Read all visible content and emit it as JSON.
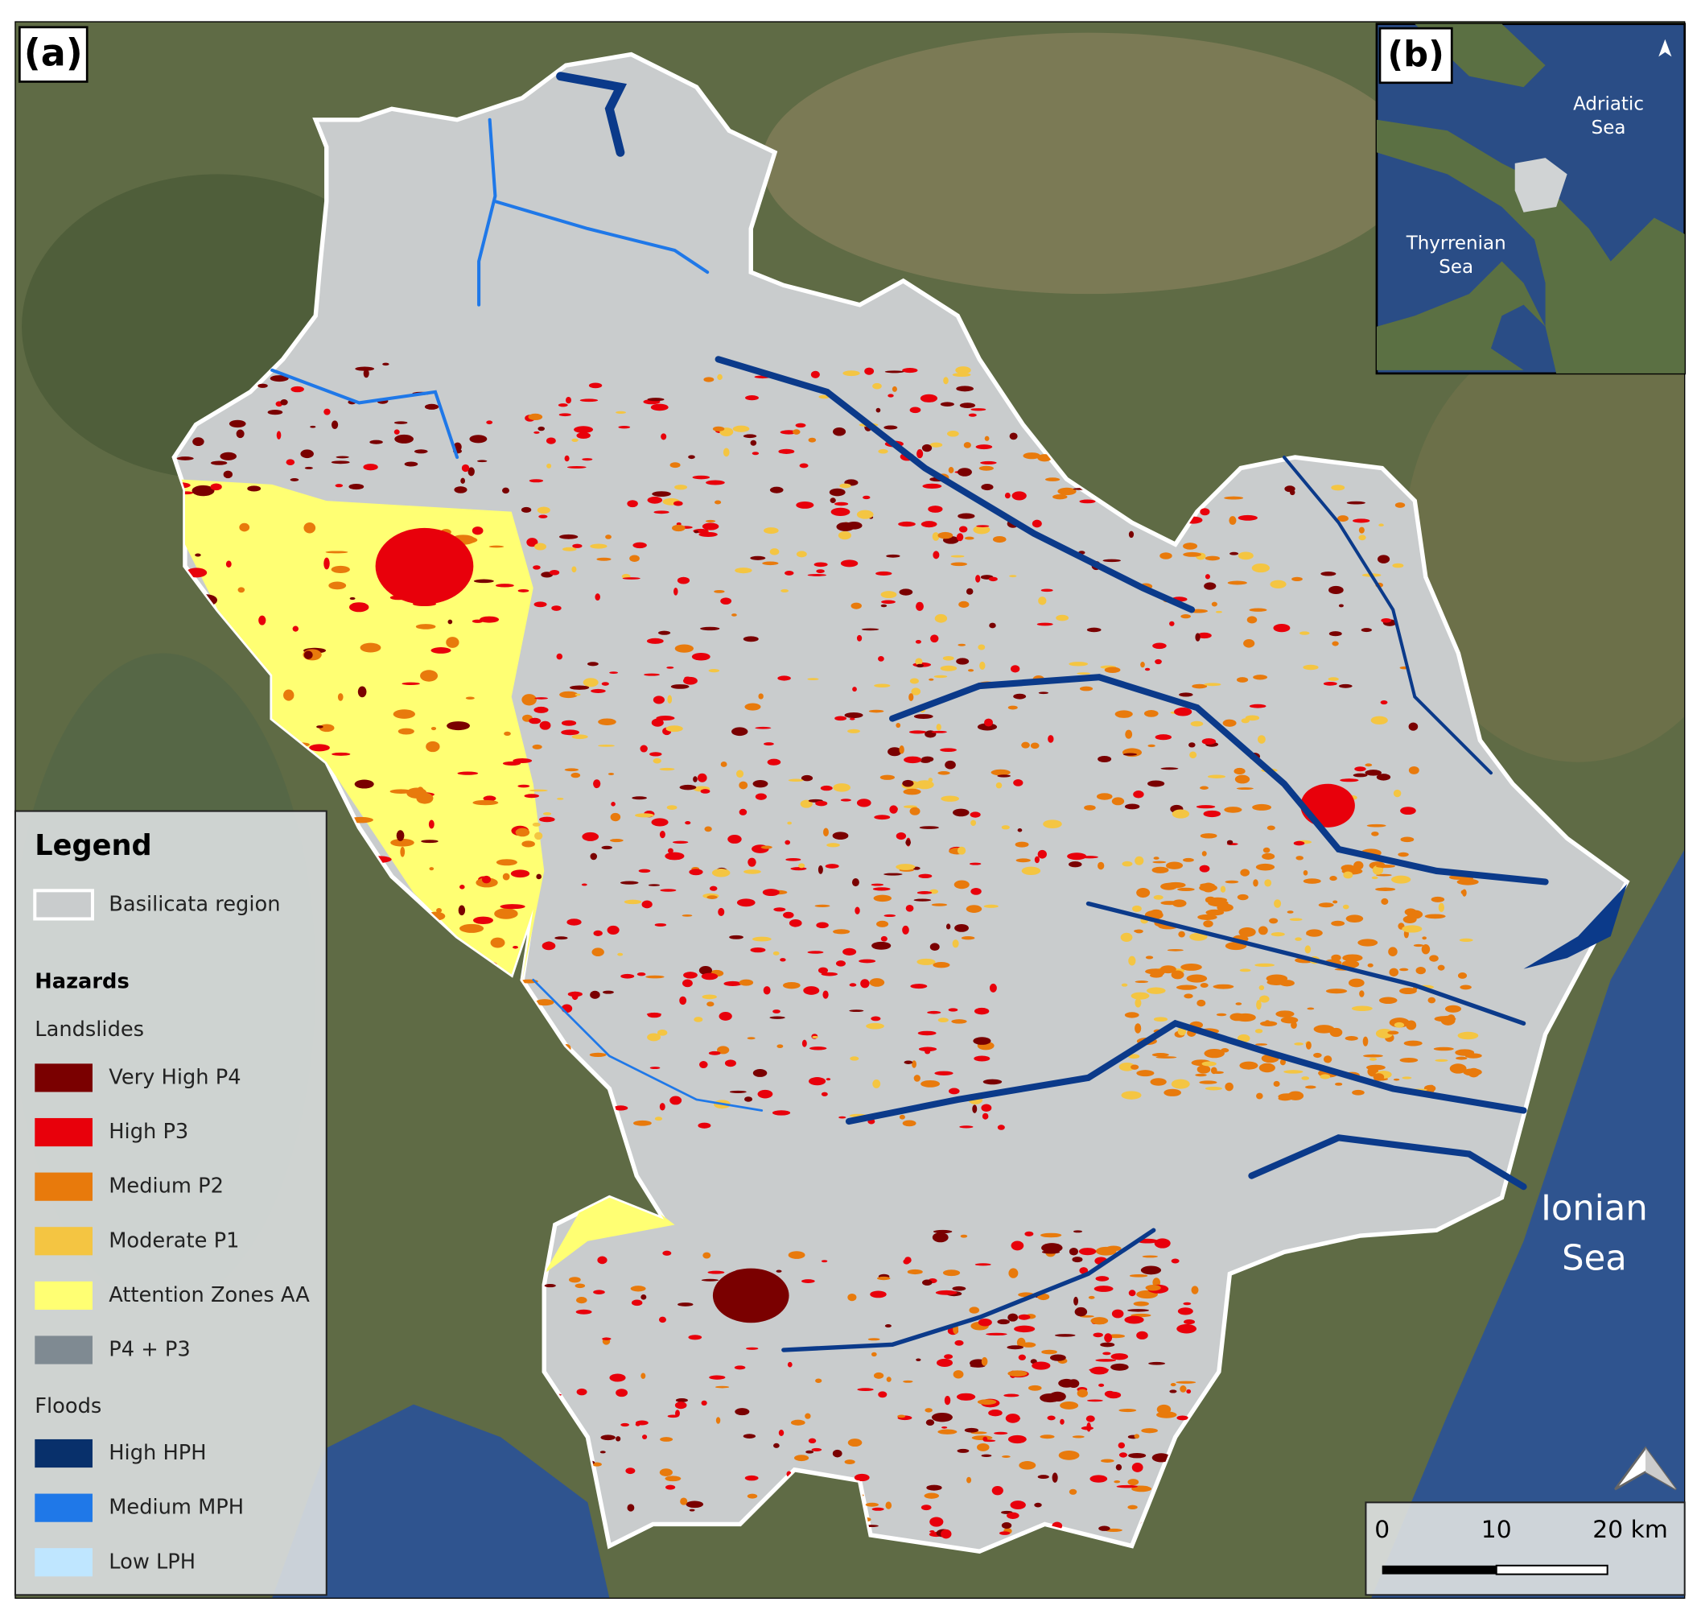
{
  "panels": {
    "main": "(a)",
    "inset": "(b)"
  },
  "inset_labels": {
    "adriatic": [
      "Adriatic",
      "Sea"
    ],
    "tyrrhenian": [
      "Thyrrenian",
      "Sea"
    ]
  },
  "sea_label": [
    "Ionian",
    "Sea"
  ],
  "legend": {
    "title": "Legend",
    "region": "Basilicata region",
    "hazards": "Hazards",
    "landslides": {
      "title": "Landslides",
      "items": [
        {
          "label": "Very High P4",
          "color": "#7a0000"
        },
        {
          "label": "High P3",
          "color": "#e8000b"
        },
        {
          "label": "Medium P2",
          "color": "#e87a0c"
        },
        {
          "label": "Moderate P1",
          "color": "#f4c542"
        },
        {
          "label": "Attention Zones AA",
          "color": "#ffff73"
        },
        {
          "label": "P4 + P3",
          "color": "#7f8a92"
        }
      ]
    },
    "floods": {
      "title": "Floods",
      "items": [
        {
          "label": "High HPH",
          "color": "#08306b"
        },
        {
          "label": "Medium MPH",
          "color": "#1f78e8"
        },
        {
          "label": "Low LPH",
          "color": "#bfe6ff"
        }
      ]
    }
  },
  "scale_bar": [
    "0",
    "10",
    "20 km"
  ]
}
